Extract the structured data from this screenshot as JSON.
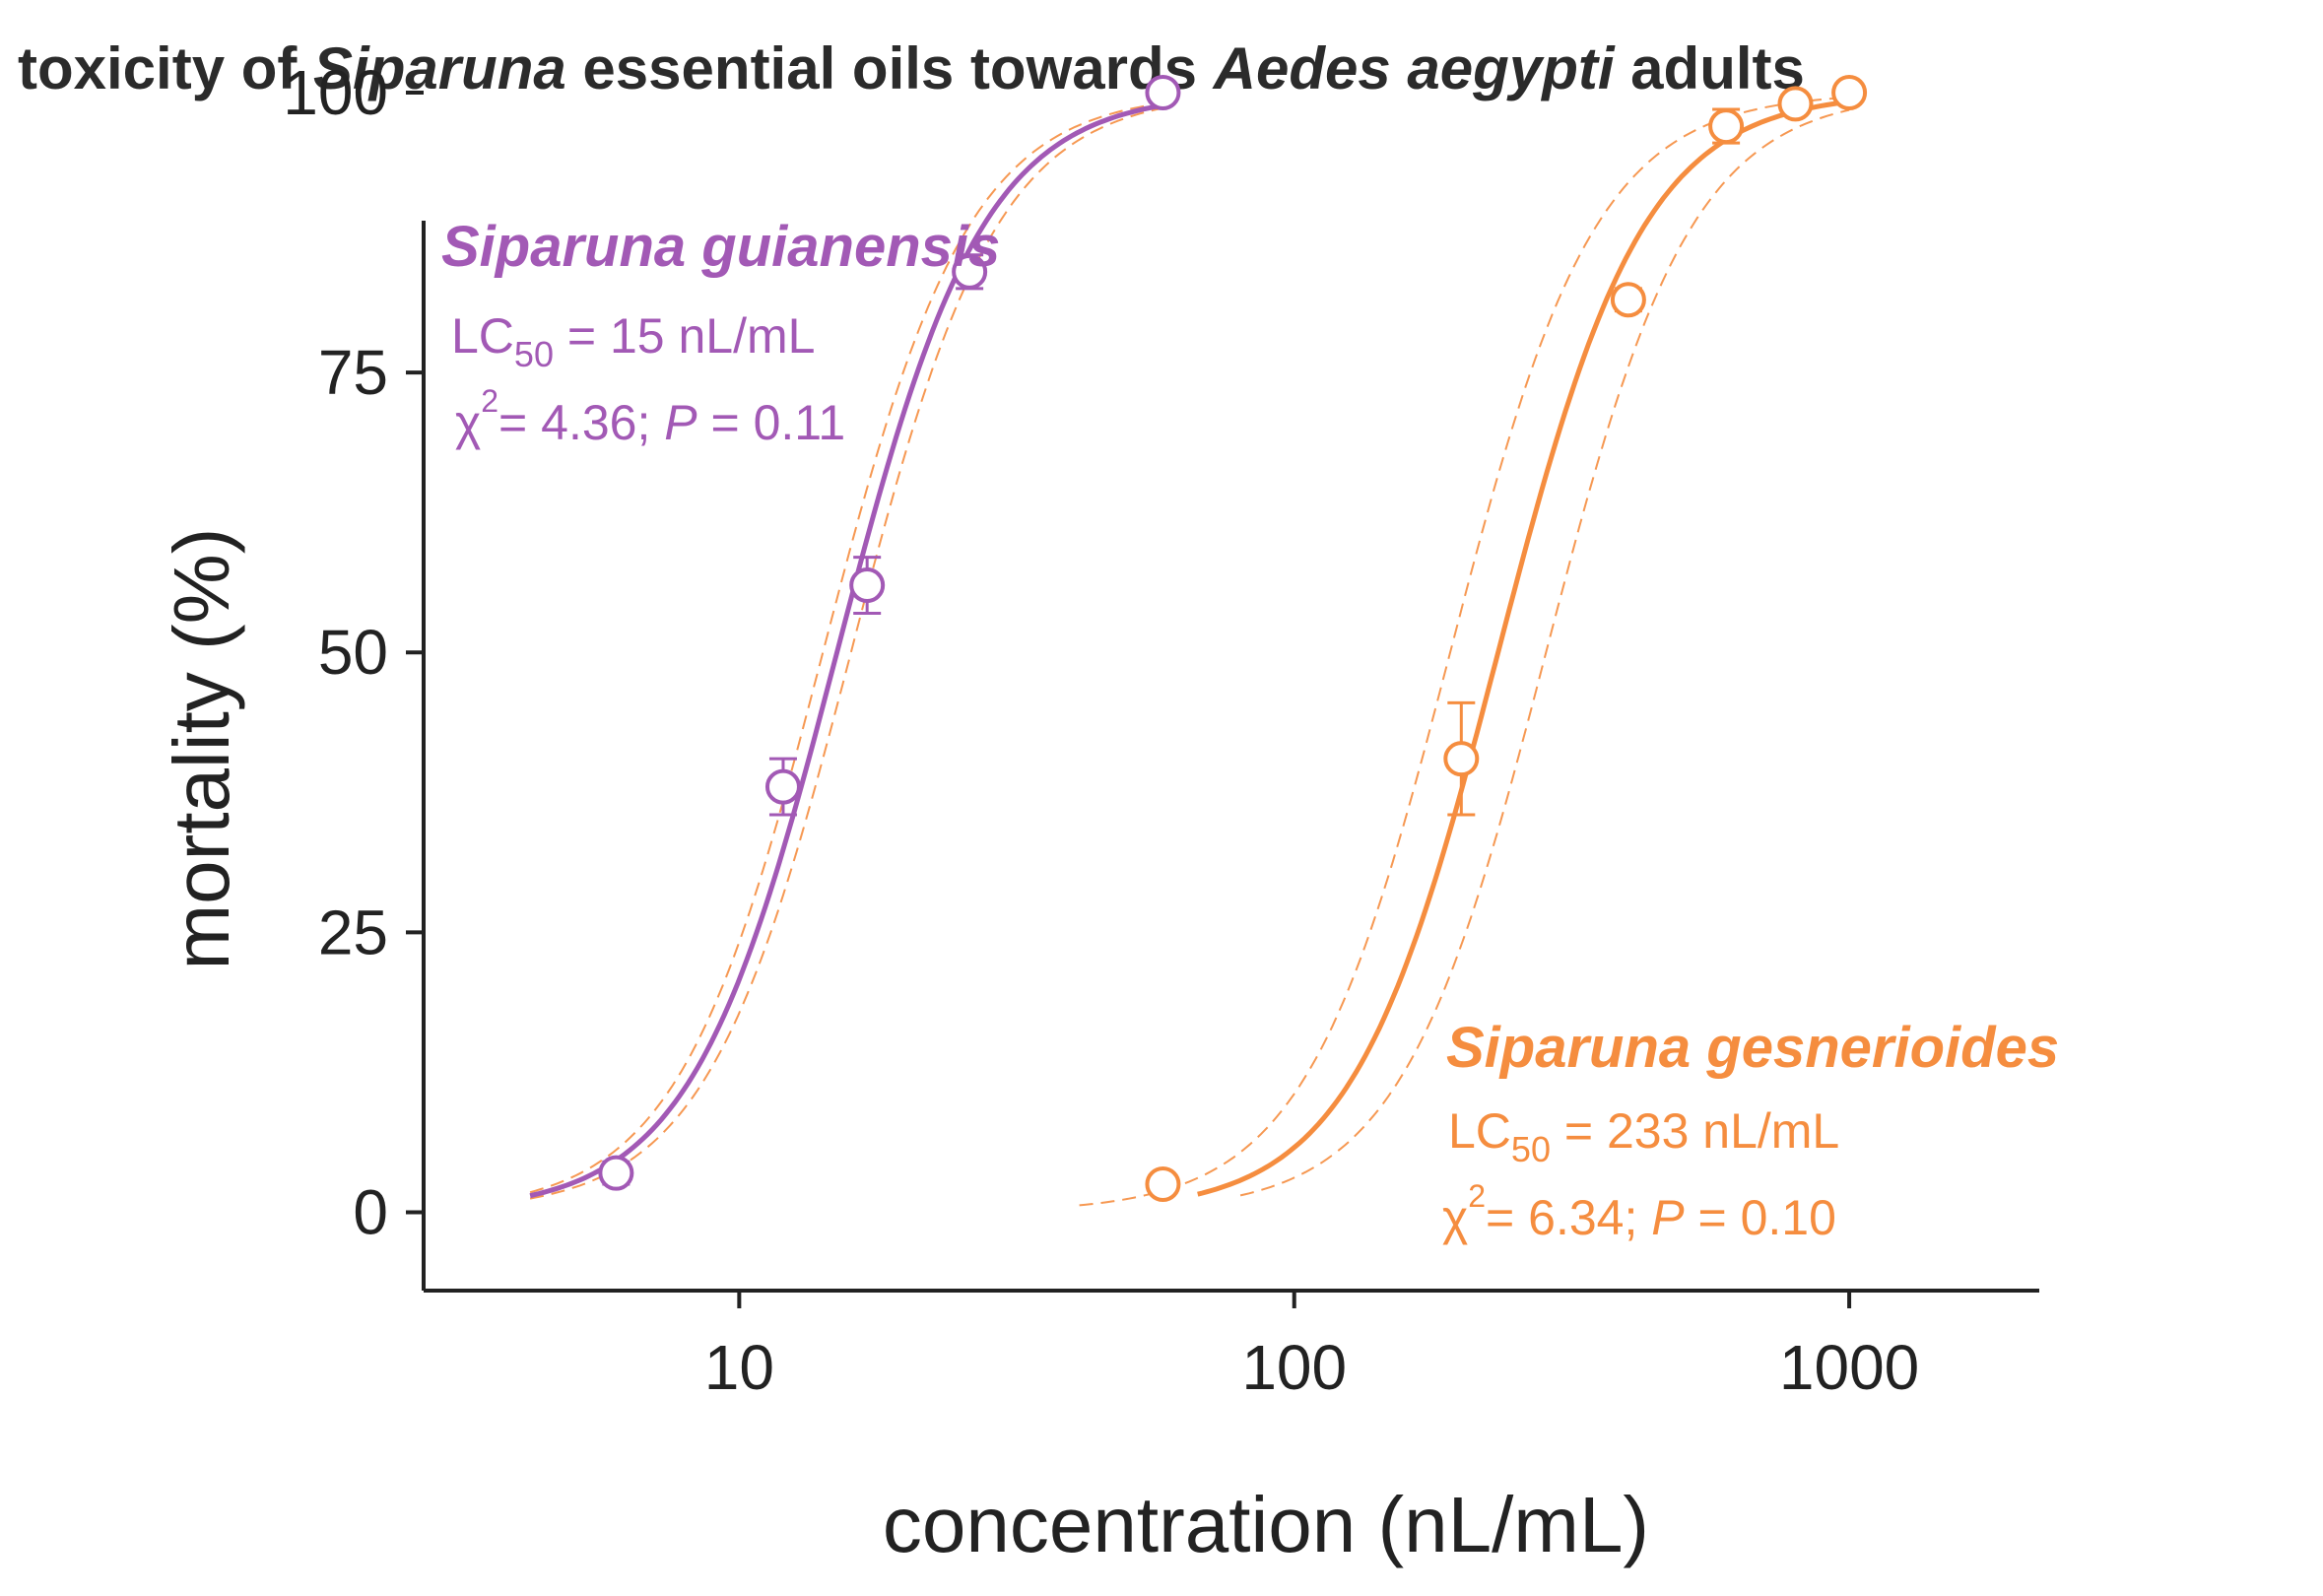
{
  "title": {
    "part1": "toxicity of ",
    "genus": "Siparuna",
    "part2": " essential oils towards ",
    "species": "Aedes aegypti",
    "part3": " adults"
  },
  "chart_data": {
    "type": "scatter",
    "title": "toxicity of Siparuna essential oils towards Aedes aegypti adults",
    "xlabel": "concentration (nL/mL)",
    "ylabel": "mortality (%)",
    "xscale": "log",
    "xlim": [
      2.7,
      2200
    ],
    "ylim": [
      -7,
      100
    ],
    "xticks": [
      10,
      100,
      1000
    ],
    "xtick_labels": [
      "10",
      "100",
      "1000"
    ],
    "yticks": [
      0,
      25,
      50,
      75,
      100
    ],
    "ytick_labels": [
      "0",
      "25",
      "50",
      "75",
      "100"
    ],
    "grid": false,
    "series": [
      {
        "name": "Siparuna guianensis",
        "color": "#a259b5",
        "lc50_label": "LC",
        "lc50_sub": "50",
        "lc50_value": " = 15 nL/mL",
        "chi_symbol": "χ",
        "chi_sup": "2",
        "chi_value": "= 4.36; ",
        "p_symbol": "P",
        "p_value": " = 0.11",
        "lc50": 15,
        "slope": 3.3,
        "x": [
          6,
          12,
          17,
          26,
          58
        ],
        "y": [
          3.5,
          38,
          56,
          84,
          100
        ],
        "err": [
          1,
          2.5,
          2.5,
          1.5,
          0
        ]
      },
      {
        "name": "Siparuna gesnerioides",
        "color": "#f58d3f",
        "lc50_label": "LC",
        "lc50_sub": "50",
        "lc50_value": " = 233 nL/mL",
        "chi_symbol": "χ",
        "chi_sup": "2",
        "chi_value": "= 6.34; ",
        "p_symbol": "P",
        "p_value": " = 0.10",
        "lc50": 233,
        "slope": 3.3,
        "x": [
          58,
          200,
          400,
          600,
          800,
          1000
        ],
        "y": [
          2.5,
          40.5,
          81.5,
          97,
          99,
          100
        ],
        "err": [
          0,
          5,
          1,
          1.5,
          0.5,
          0
        ]
      }
    ]
  }
}
